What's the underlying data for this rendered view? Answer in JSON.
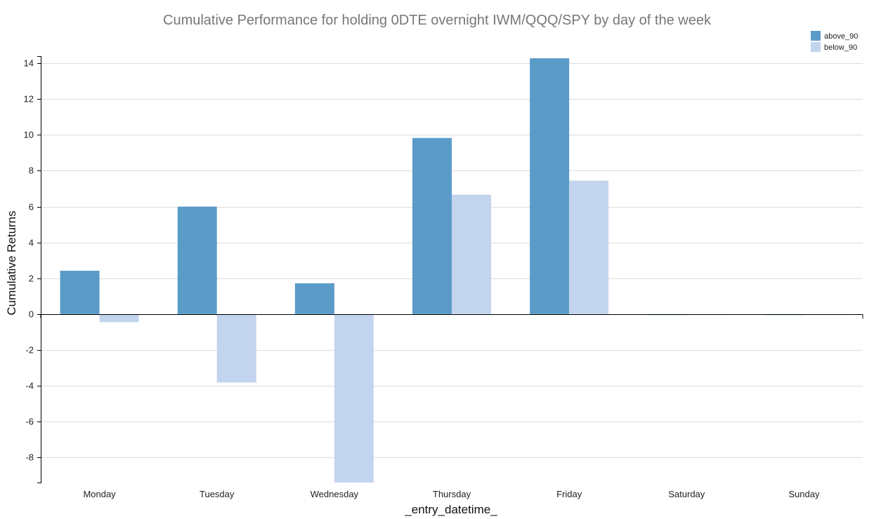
{
  "chart_data": {
    "type": "bar",
    "title": "Cumulative Performance for holding 0DTE overnight IWM/QQQ/SPY by day of the week",
    "xlabel": "_entry_datetime_",
    "ylabel": "Cumulative Returns",
    "categories": [
      "Monday",
      "Tuesday",
      "Wednesday",
      "Thursday",
      "Friday",
      "Saturday",
      "Sunday"
    ],
    "series": [
      {
        "name": "above_90",
        "color": "#5b9bc8",
        "values": [
          2.42,
          6.0,
          1.72,
          9.83,
          14.28,
          -0.05,
          -0.05
        ]
      },
      {
        "name": "below_90",
        "color": "#c3d4ee",
        "values": [
          -0.45,
          -3.82,
          -9.4,
          6.67,
          7.45,
          -0.03,
          -0.03
        ]
      }
    ],
    "ylim": [
      -9.4,
      14.4
    ],
    "yticks": [
      14,
      12,
      10,
      8,
      6,
      4,
      2,
      0,
      -2,
      -4,
      -6,
      -8
    ],
    "grid": true,
    "legend": "top-right"
  }
}
